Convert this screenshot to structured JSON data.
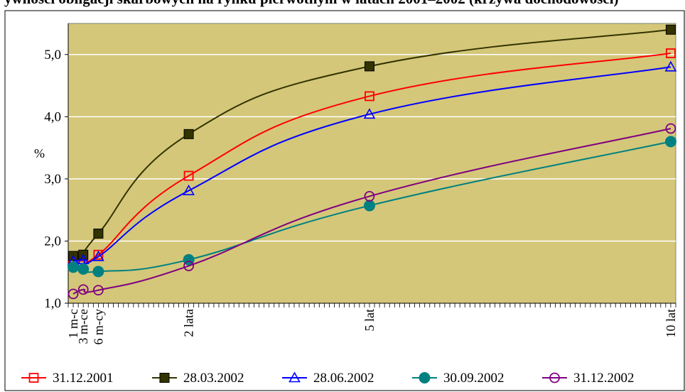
{
  "page": {
    "title": "ywności obligacji skarbowych na rynku pierwotnym w latach 2001–2002 (krzywa dochodowości)"
  },
  "chart_data": {
    "type": "line",
    "title": "",
    "xlabel": "",
    "ylabel": "%",
    "x_unit": "months",
    "xlim": [
      0,
      121
    ],
    "ylim": [
      1.0,
      5.5
    ],
    "y_ticks": [
      1.0,
      2.0,
      3.0,
      4.0,
      5.0
    ],
    "y_tick_labels": [
      "1,0",
      "2,0",
      "3,0",
      "4,0",
      "5,0"
    ],
    "x_ticks": [
      1,
      3,
      6,
      24,
      60,
      120
    ],
    "x_tick_labels": [
      "1 m-c",
      "3 m-ce",
      "6 m-cy",
      "2 lata",
      "5 lat",
      "10 lat"
    ],
    "x_minor_tick_step": 1,
    "grid": true,
    "grid_axis": "y",
    "plot_background": "#D4C779",
    "legend_position": "bottom",
    "series": [
      {
        "name": "31.12.2001",
        "color": "#FF0000",
        "marker": "square-open",
        "x": [
          1,
          3,
          6,
          24,
          60,
          120
        ],
        "y": [
          1.72,
          1.75,
          1.78,
          3.05,
          4.33,
          5.02
        ]
      },
      {
        "name": "28.03.2002",
        "color": "#333300",
        "marker": "square-filled",
        "x": [
          1,
          3,
          6,
          24,
          60,
          120
        ],
        "y": [
          1.76,
          1.78,
          2.12,
          3.72,
          4.81,
          5.4
        ]
      },
      {
        "name": "28.06.2002",
        "color": "#0000FF",
        "marker": "triangle-open",
        "x": [
          1,
          3,
          6,
          24,
          60,
          120
        ],
        "y": [
          1.68,
          1.7,
          1.75,
          2.81,
          4.04,
          4.8
        ]
      },
      {
        "name": "30.09.2002",
        "color": "#008080",
        "marker": "circle-filled",
        "x": [
          1,
          3,
          6,
          24,
          60,
          120
        ],
        "y": [
          1.58,
          1.55,
          1.51,
          1.7,
          2.57,
          3.6
        ]
      },
      {
        "name": "31.12.2002",
        "color": "#800080",
        "marker": "circle-open",
        "x": [
          1,
          3,
          6,
          24,
          60,
          120
        ],
        "y": [
          1.15,
          1.22,
          1.21,
          1.6,
          2.72,
          3.81
        ]
      }
    ]
  }
}
